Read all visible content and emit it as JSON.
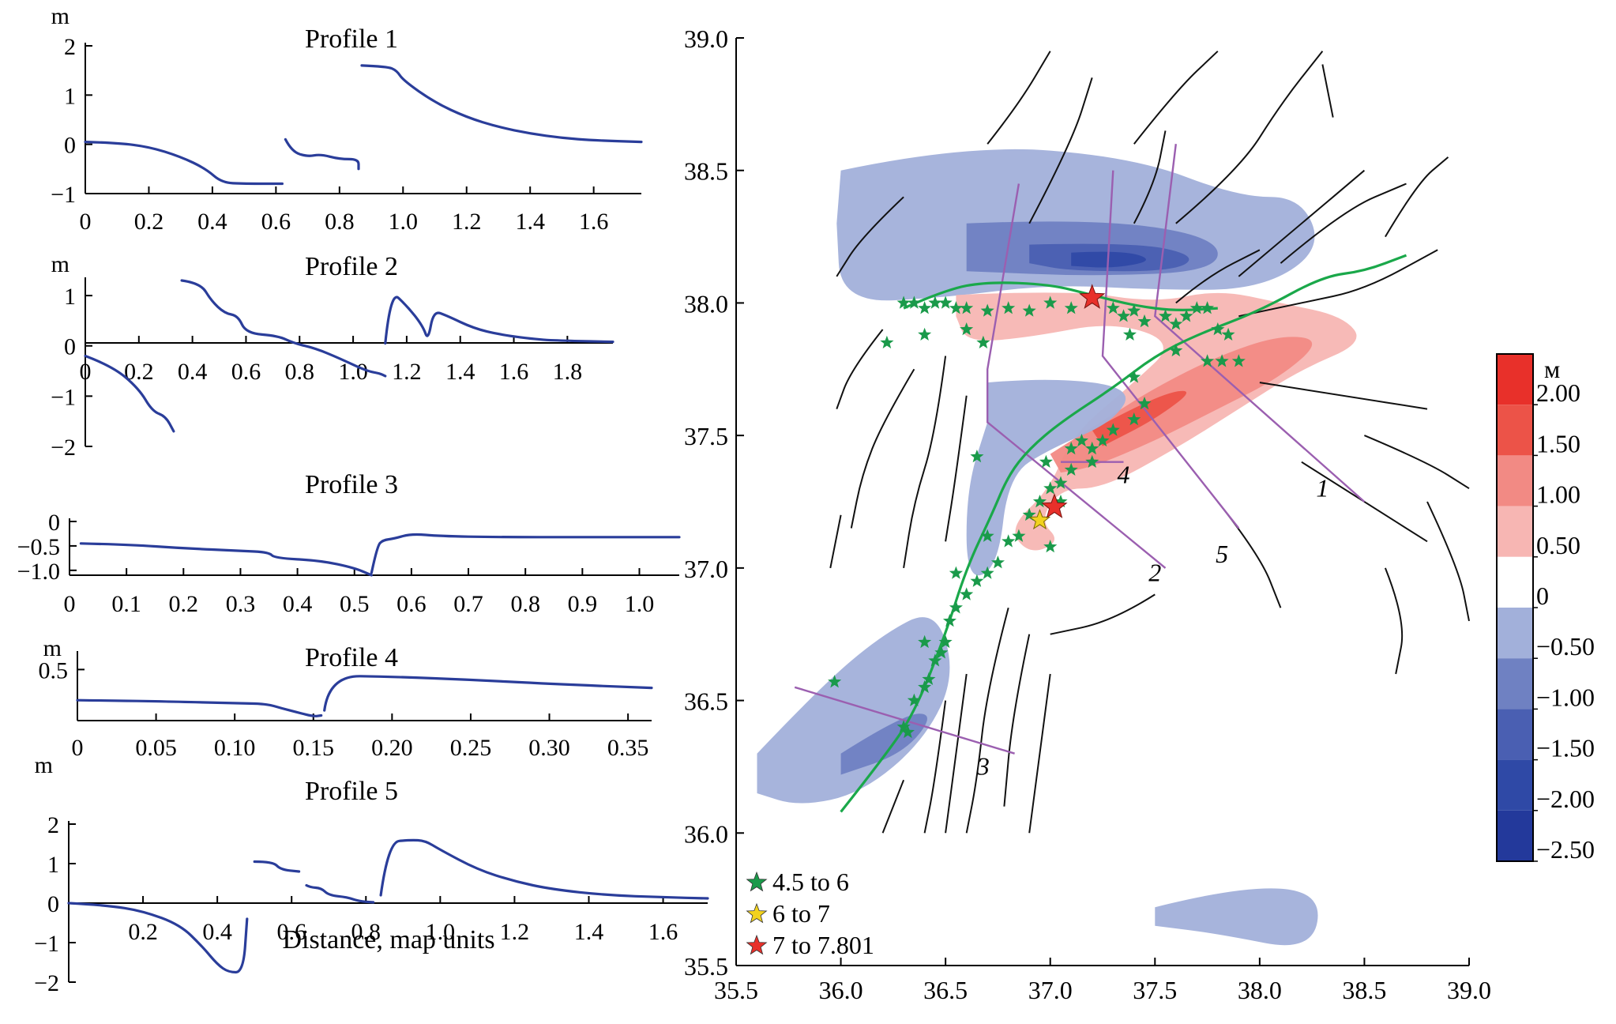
{
  "chart_data": [
    {
      "type": "line",
      "title": "Profile 1",
      "ylabel": "m",
      "xlabel": "",
      "xlim": [
        0,
        1.75
      ],
      "ylim": [
        -1,
        2
      ],
      "x_ticks": [
        "0",
        "0.2",
        "0.4",
        "0.6",
        "0.8",
        "1.0",
        "1.2",
        "1.4",
        "1.6"
      ],
      "y_ticks": [
        "2",
        "1",
        "0",
        "−1"
      ],
      "color": "#2a3d9a",
      "segments": [
        [
          [
            0,
            0.05
          ],
          [
            0.1,
            0.03
          ],
          [
            0.2,
            -0.05
          ],
          [
            0.3,
            -0.25
          ],
          [
            0.38,
            -0.5
          ],
          [
            0.43,
            -0.78
          ],
          [
            0.5,
            -0.8
          ],
          [
            0.62,
            -0.8
          ]
        ],
        [
          [
            0.63,
            0.1
          ],
          [
            0.65,
            -0.15
          ],
          [
            0.7,
            -0.25
          ],
          [
            0.74,
            -0.2
          ],
          [
            0.8,
            -0.3
          ],
          [
            0.86,
            -0.3
          ],
          [
            0.86,
            -0.5
          ]
        ],
        [
          [
            0.87,
            1.6
          ],
          [
            0.95,
            1.58
          ],
          [
            0.98,
            1.5
          ],
          [
            1.0,
            1.3
          ],
          [
            1.1,
            0.85
          ],
          [
            1.2,
            0.55
          ],
          [
            1.3,
            0.35
          ],
          [
            1.4,
            0.22
          ],
          [
            1.5,
            0.13
          ],
          [
            1.6,
            0.08
          ],
          [
            1.75,
            0.05
          ]
        ]
      ]
    },
    {
      "type": "line",
      "title": "Profile 2",
      "ylabel": "m",
      "xlabel": "",
      "xlim": [
        0,
        1.97
      ],
      "ylim": [
        -2,
        1.3
      ],
      "x_ticks": [
        "0",
        "0.2",
        "0.4",
        "0.6",
        "0.8",
        "1.0",
        "1.2",
        "1.4",
        "1.6",
        "1.8"
      ],
      "y_ticks": [
        "1",
        "0",
        "−1",
        "−2"
      ],
      "color": "#2a3d9a",
      "segments": [
        [
          [
            0,
            -0.2
          ],
          [
            0.1,
            -0.4
          ],
          [
            0.2,
            -0.85
          ],
          [
            0.25,
            -1.3
          ],
          [
            0.3,
            -1.4
          ],
          [
            0.33,
            -1.7
          ]
        ],
        [
          [
            0.36,
            1.3
          ],
          [
            0.43,
            1.25
          ],
          [
            0.47,
            0.9
          ],
          [
            0.52,
            0.65
          ],
          [
            0.57,
            0.6
          ],
          [
            0.6,
            0.25
          ],
          [
            0.72,
            0.2
          ],
          [
            0.78,
            0.05
          ],
          [
            0.86,
            -0.05
          ],
          [
            0.95,
            -0.25
          ],
          [
            1.05,
            -0.5
          ],
          [
            1.1,
            -0.55
          ],
          [
            1.12,
            -0.6
          ]
        ],
        [
          [
            1.12,
            0.05
          ],
          [
            1.14,
            1.1
          ],
          [
            1.2,
            0.8
          ],
          [
            1.26,
            0.4
          ],
          [
            1.28,
            0.1
          ],
          [
            1.3,
            0.7
          ],
          [
            1.35,
            0.6
          ],
          [
            1.45,
            0.35
          ],
          [
            1.55,
            0.22
          ],
          [
            1.7,
            0.12
          ],
          [
            1.8,
            0.1
          ],
          [
            1.97,
            0.08
          ]
        ]
      ]
    },
    {
      "type": "line",
      "title": "Profile 3",
      "ylabel": "",
      "xlabel": "",
      "xlim": [
        0,
        1.07
      ],
      "ylim": [
        -1.1,
        0
      ],
      "x_ticks": [
        "0",
        "0.1",
        "0.2",
        "0.3",
        "0.4",
        "0.5",
        "0.6",
        "0.7",
        "0.8",
        "0.9",
        "1.0"
      ],
      "y_ticks": [
        "0",
        "−0.5",
        "−1.0"
      ],
      "color": "#2a3d9a",
      "segments": [
        [
          [
            0.02,
            -0.45
          ],
          [
            0.1,
            -0.47
          ],
          [
            0.2,
            -0.55
          ],
          [
            0.3,
            -0.6
          ],
          [
            0.35,
            -0.63
          ],
          [
            0.36,
            -0.75
          ],
          [
            0.44,
            -0.8
          ],
          [
            0.5,
            -0.95
          ],
          [
            0.53,
            -1.1
          ]
        ],
        [
          [
            0.53,
            -1.05
          ],
          [
            0.54,
            -0.5
          ],
          [
            0.55,
            -0.38
          ],
          [
            0.57,
            -0.35
          ],
          [
            0.6,
            -0.25
          ],
          [
            0.65,
            -0.3
          ],
          [
            0.75,
            -0.32
          ],
          [
            0.9,
            -0.32
          ],
          [
            1.07,
            -0.32
          ]
        ]
      ]
    },
    {
      "type": "line",
      "title": "Profile 4",
      "ylabel": "m",
      "xlabel": "",
      "xlim": [
        0,
        0.365
      ],
      "ylim": [
        0,
        0.65
      ],
      "x_ticks": [
        "0",
        "0.05",
        "0.10",
        "0.15",
        "0.20",
        "0.25",
        "0.30",
        "0.35"
      ],
      "y_ticks": [
        "0.5"
      ],
      "color": "#2a3d9a",
      "segments": [
        [
          [
            0,
            0.2
          ],
          [
            0.05,
            0.19
          ],
          [
            0.1,
            0.17
          ],
          [
            0.12,
            0.165
          ],
          [
            0.13,
            0.12
          ],
          [
            0.14,
            0.08
          ],
          [
            0.15,
            0.04
          ],
          [
            0.155,
            0.05
          ]
        ],
        [
          [
            0.157,
            0.1
          ],
          [
            0.16,
            0.44
          ],
          [
            0.2,
            0.43
          ],
          [
            0.25,
            0.4
          ],
          [
            0.3,
            0.36
          ],
          [
            0.365,
            0.32
          ]
        ]
      ]
    },
    {
      "type": "line",
      "title": "Profile 5",
      "ylabel": "m",
      "xlabel": "Distance, map units",
      "xlim": [
        0,
        1.72
      ],
      "ylim": [
        -2,
        2
      ],
      "x_ticks": [
        "0.2",
        "0.4",
        "0.6",
        "0.8",
        "1.0",
        "1.2",
        "1.4",
        "1.6"
      ],
      "y_ticks": [
        "2",
        "1",
        "0",
        "−1",
        "−2"
      ],
      "color": "#2a3d9a",
      "segments": [
        [
          [
            0,
            0
          ],
          [
            0.1,
            -0.05
          ],
          [
            0.2,
            -0.2
          ],
          [
            0.3,
            -0.55
          ],
          [
            0.36,
            -1.1
          ],
          [
            0.4,
            -1.55
          ],
          [
            0.43,
            -1.75
          ],
          [
            0.47,
            -1.75
          ],
          [
            0.48,
            -0.4
          ]
        ],
        [
          [
            0.5,
            1.05
          ],
          [
            0.55,
            1.05
          ],
          [
            0.57,
            0.85
          ],
          [
            0.62,
            0.8
          ]
        ],
        [
          [
            0.64,
            0.45
          ],
          [
            0.65,
            0.4
          ],
          [
            0.68,
            0.38
          ],
          [
            0.7,
            0.2
          ],
          [
            0.75,
            0.15
          ],
          [
            0.78,
            0.05
          ],
          [
            0.82,
            0.02
          ]
        ],
        [
          [
            0.84,
            0.2
          ],
          [
            0.86,
            1.55
          ],
          [
            0.92,
            1.6
          ],
          [
            0.96,
            1.58
          ],
          [
            1.0,
            1.35
          ],
          [
            1.1,
            0.85
          ],
          [
            1.2,
            0.55
          ],
          [
            1.3,
            0.35
          ],
          [
            1.45,
            0.2
          ],
          [
            1.6,
            0.15
          ],
          [
            1.72,
            0.12
          ]
        ]
      ]
    },
    {
      "type": "heatmap",
      "title": "",
      "xlim": [
        35.5,
        39.0
      ],
      "ylim": [
        35.5,
        39.0
      ],
      "x_ticks": [
        "35.5",
        "36.0",
        "36.5",
        "37.0",
        "37.5",
        "38.0",
        "38.5",
        "39.0"
      ],
      "y_ticks": [
        "39.0",
        "38.5",
        "38.0",
        "37.5",
        "37.0",
        "36.5",
        "36.0",
        "35.5"
      ],
      "colorbar": {
        "unit": "м",
        "ticks": [
          "2.00",
          "1.50",
          "1.00",
          "0.50",
          "0",
          "−0.50",
          "−1.00",
          "−1.50",
          "−2.00",
          "−2.50"
        ],
        "colors": [
          "#e8302a",
          "#ec5348",
          "#f28a84",
          "#f7b6b3",
          "#ffffff",
          "#a2b0da",
          "#6f81c2",
          "#4a5fb2",
          "#2f49a6",
          "#23399b"
        ]
      },
      "profile_labels": [
        "1",
        "2",
        "3",
        "4",
        "5"
      ],
      "profile_lines": [
        {
          "label": "1",
          "points": [
            [
              37.6,
              38.6
            ],
            [
              37.5,
              37.95
            ],
            [
              38.5,
              37.25
            ]
          ]
        },
        {
          "label": "2",
          "points": [
            [
              36.85,
              38.45
            ],
            [
              36.7,
              37.75
            ],
            [
              36.7,
              37.55
            ],
            [
              37.55,
              37.0
            ]
          ]
        },
        {
          "label": "3",
          "points": [
            [
              35.78,
              36.55
            ],
            [
              36.83,
              36.3
            ]
          ]
        },
        {
          "label": "4",
          "points": [
            [
              37.05,
              37.4
            ],
            [
              37.35,
              37.4
            ]
          ]
        },
        {
          "label": "5",
          "points": [
            [
              37.3,
              38.5
            ],
            [
              37.25,
              37.8
            ],
            [
              37.9,
              37.15
            ]
          ]
        }
      ],
      "legend": {
        "position": "bottom-left",
        "entries": [
          {
            "label": "4.5 to 6",
            "color": "#1a9a4a"
          },
          {
            "label": "6 to 7",
            "color": "#f2d21e"
          },
          {
            "label": "7 to 7.801",
            "color": "#e8302a"
          }
        ]
      },
      "epicenters_large": [
        [
          37.2,
          38.02
        ],
        [
          37.02,
          37.23
        ]
      ],
      "epicenters_mid": [
        [
          36.95,
          37.18
        ]
      ],
      "epicenters_small": [
        [
          36.3,
          38.0
        ],
        [
          36.35,
          38.0
        ],
        [
          36.4,
          37.98
        ],
        [
          36.45,
          38.0
        ],
        [
          36.5,
          38.0
        ],
        [
          36.55,
          37.98
        ],
        [
          36.6,
          37.98
        ],
        [
          36.7,
          37.97
        ],
        [
          36.8,
          37.98
        ],
        [
          36.9,
          37.97
        ],
        [
          37.0,
          38.0
        ],
        [
          37.1,
          37.98
        ],
        [
          37.3,
          37.98
        ],
        [
          37.35,
          37.95
        ],
        [
          37.4,
          37.97
        ],
        [
          37.45,
          37.93
        ],
        [
          37.55,
          37.95
        ],
        [
          37.6,
          37.92
        ],
        [
          37.65,
          37.95
        ],
        [
          37.7,
          37.98
        ],
        [
          37.75,
          37.98
        ],
        [
          37.8,
          37.9
        ],
        [
          37.85,
          37.88
        ],
        [
          37.9,
          37.78
        ],
        [
          37.82,
          37.78
        ],
        [
          37.75,
          37.78
        ],
        [
          37.6,
          37.82
        ],
        [
          37.4,
          37.72
        ],
        [
          37.45,
          37.62
        ],
        [
          37.4,
          37.56
        ],
        [
          37.3,
          37.52
        ],
        [
          37.25,
          37.48
        ],
        [
          37.2,
          37.45
        ],
        [
          37.15,
          37.48
        ],
        [
          37.1,
          37.45
        ],
        [
          37.2,
          37.4
        ],
        [
          37.1,
          37.37
        ],
        [
          37.05,
          37.32
        ],
        [
          37.05,
          37.25
        ],
        [
          37.0,
          37.3
        ],
        [
          36.95,
          37.25
        ],
        [
          36.9,
          37.2
        ],
        [
          36.85,
          37.12
        ],
        [
          36.8,
          37.1
        ],
        [
          36.75,
          37.02
        ],
        [
          36.7,
          36.98
        ],
        [
          36.65,
          36.95
        ],
        [
          36.6,
          36.9
        ],
        [
          36.55,
          36.85
        ],
        [
          36.52,
          36.8
        ],
        [
          36.5,
          36.72
        ],
        [
          36.48,
          36.68
        ],
        [
          36.45,
          36.65
        ],
        [
          36.42,
          36.58
        ],
        [
          36.4,
          36.55
        ],
        [
          36.35,
          36.5
        ],
        [
          36.3,
          36.4
        ],
        [
          36.4,
          36.72
        ],
        [
          36.55,
          36.98
        ],
        [
          36.7,
          37.12
        ],
        [
          36.65,
          37.42
        ],
        [
          36.98,
          37.4
        ],
        [
          37.38,
          37.88
        ],
        [
          36.22,
          37.85
        ],
        [
          36.4,
          37.88
        ],
        [
          36.6,
          37.9
        ],
        [
          36.68,
          37.85
        ],
        [
          35.97,
          36.57
        ],
        [
          36.32,
          36.38
        ],
        [
          37.0,
          37.08
        ]
      ],
      "rupture_traces": [
        [
          [
            36.0,
            36.08
          ],
          [
            36.2,
            36.28
          ],
          [
            36.35,
            36.45
          ],
          [
            36.5,
            36.75
          ],
          [
            36.6,
            37.0
          ],
          [
            36.72,
            37.2
          ],
          [
            36.8,
            37.35
          ],
          [
            36.9,
            37.45
          ],
          [
            37.05,
            37.55
          ],
          [
            37.3,
            37.68
          ],
          [
            37.5,
            37.8
          ],
          [
            37.7,
            37.88
          ],
          [
            38.0,
            37.97
          ],
          [
            38.3,
            38.1
          ],
          [
            38.5,
            38.12
          ],
          [
            38.7,
            38.18
          ]
        ],
        [
          [
            36.3,
            37.98
          ],
          [
            36.5,
            38.05
          ],
          [
            36.7,
            38.08
          ],
          [
            37.0,
            38.07
          ],
          [
            37.2,
            38.03
          ],
          [
            37.4,
            37.99
          ],
          [
            37.6,
            37.97
          ],
          [
            37.8,
            37.98
          ]
        ]
      ]
    }
  ]
}
